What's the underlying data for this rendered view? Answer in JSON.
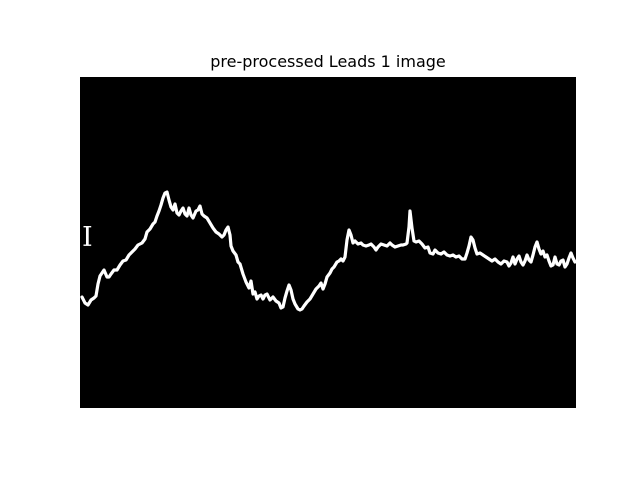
{
  "figure": {
    "title": "pre-processed Leads 1 image"
  },
  "image": {
    "lead_label": "I",
    "background_color": "#000000",
    "trace_color": "#ffffff",
    "content": "ECG lead I waveform"
  }
}
